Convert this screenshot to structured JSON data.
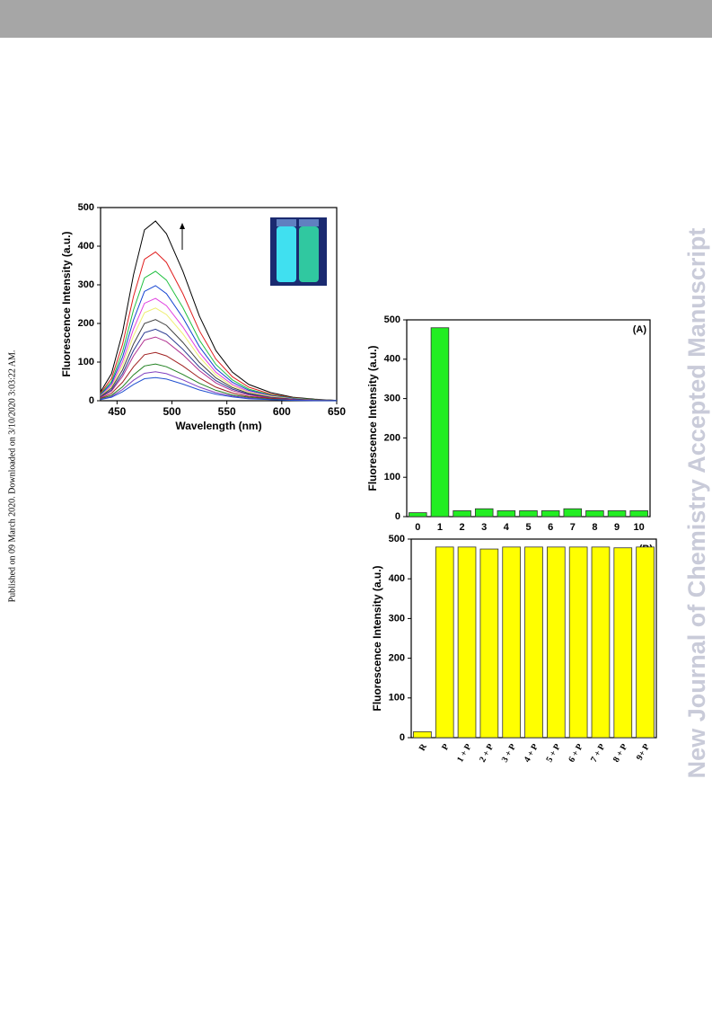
{
  "side_note": "Published on 09 March 2020. Downloaded on 3/10/2020 3:03:22 AM.",
  "watermark": "New Journal of Chemistry Accepted Manuscript",
  "chart_data": [
    {
      "type": "line",
      "xlabel": "Wavelength (nm)",
      "ylabel": "Fluorescence Intensity (a.u.)",
      "x": [
        435,
        445,
        455,
        465,
        475,
        485,
        495,
        510,
        525,
        540,
        555,
        570,
        590,
        610,
        630,
        650
      ],
      "xlim": [
        435,
        650
      ],
      "ylim": [
        0,
        500
      ],
      "xticks": [
        450,
        500,
        550,
        600,
        650
      ],
      "yticks": [
        0,
        100,
        200,
        300,
        400,
        500
      ],
      "series": [
        {
          "color": "#000000",
          "values": [
            23,
            70,
            177,
            326,
            442,
            465,
            432,
            335,
            219,
            130,
            74,
            42,
            21,
            9,
            4,
            1
          ]
        },
        {
          "color": "#e02020",
          "values": [
            19,
            58,
            146,
            270,
            366,
            385,
            358,
            277,
            181,
            108,
            62,
            35,
            17,
            8,
            3,
            1
          ]
        },
        {
          "color": "#20c040",
          "values": [
            17,
            50,
            127,
            235,
            318,
            335,
            312,
            241,
            157,
            94,
            54,
            30,
            15,
            7,
            3,
            1
          ]
        },
        {
          "color": "#1040d0",
          "values": [
            15,
            45,
            113,
            209,
            283,
            298,
            277,
            215,
            140,
            83,
            48,
            27,
            13,
            6,
            2,
            1
          ]
        },
        {
          "color": "#e040e0",
          "values": [
            13,
            40,
            101,
            186,
            252,
            265,
            246,
            191,
            125,
            74,
            42,
            24,
            12,
            5,
            2,
            1
          ]
        },
        {
          "color": "#eeee70",
          "values": [
            12,
            36,
            91,
            168,
            228,
            240,
            223,
            173,
            113,
            67,
            38,
            22,
            11,
            5,
            2,
            1
          ]
        },
        {
          "color": "#404040",
          "values": [
            11,
            32,
            80,
            147,
            200,
            210,
            195,
            151,
            99,
            59,
            34,
            19,
            9,
            4,
            2,
            1
          ]
        },
        {
          "color": "#283890",
          "values": [
            9,
            28,
            70,
            130,
            176,
            185,
            172,
            133,
            87,
            52,
            30,
            17,
            8,
            4,
            1,
            1
          ]
        },
        {
          "color": "#b03090",
          "values": [
            8,
            25,
            63,
            116,
            157,
            165,
            153,
            119,
            78,
            46,
            26,
            15,
            7,
            3,
            1,
            0
          ]
        },
        {
          "color": "#a02020",
          "values": [
            6,
            19,
            48,
            88,
            119,
            125,
            116,
            90,
            59,
            35,
            20,
            11,
            6,
            3,
            1,
            0
          ]
        },
        {
          "color": "#208020",
          "values": [
            5,
            14,
            36,
            67,
            90,
            95,
            88,
            68,
            45,
            27,
            15,
            9,
            4,
            2,
            1,
            0
          ]
        },
        {
          "color": "#8040c0",
          "values": [
            4,
            11,
            29,
            53,
            71,
            75,
            70,
            54,
            35,
            21,
            12,
            7,
            3,
            2,
            1,
            0
          ]
        },
        {
          "color": "#2050d0",
          "values": [
            3,
            9,
            23,
            42,
            57,
            60,
            56,
            43,
            28,
            17,
            10,
            5,
            3,
            1,
            0,
            0
          ]
        }
      ]
    },
    {
      "type": "bar",
      "annotation": "(A)",
      "ylabel": "Fluorescence Intensity (a.u.)",
      "color": "#22ee22",
      "categories": [
        "0",
        "1",
        "2",
        "3",
        "4",
        "5",
        "6",
        "7",
        "8",
        "9",
        "10"
      ],
      "values": [
        10,
        480,
        15,
        20,
        15,
        15,
        15,
        20,
        15,
        15,
        15
      ],
      "ylim": [
        0,
        500
      ],
      "yticks": [
        0,
        100,
        200,
        300,
        400,
        500
      ]
    },
    {
      "type": "bar",
      "annotation": "(B)",
      "ylabel": "Fluorescence Intensity (a.u.)",
      "color": "#ffff00",
      "rotate_labels": true,
      "categories": [
        "R",
        "P",
        "1 + P",
        "2 + P",
        "3 + P",
        "4 + P",
        "5 + P",
        "6 + P",
        "7 + P",
        "8 + P",
        "9+ P"
      ],
      "values": [
        15,
        480,
        480,
        475,
        480,
        480,
        480,
        480,
        480,
        478,
        480
      ],
      "ylim": [
        0,
        500
      ],
      "yticks": [
        0,
        100,
        200,
        300,
        400,
        500
      ]
    }
  ]
}
